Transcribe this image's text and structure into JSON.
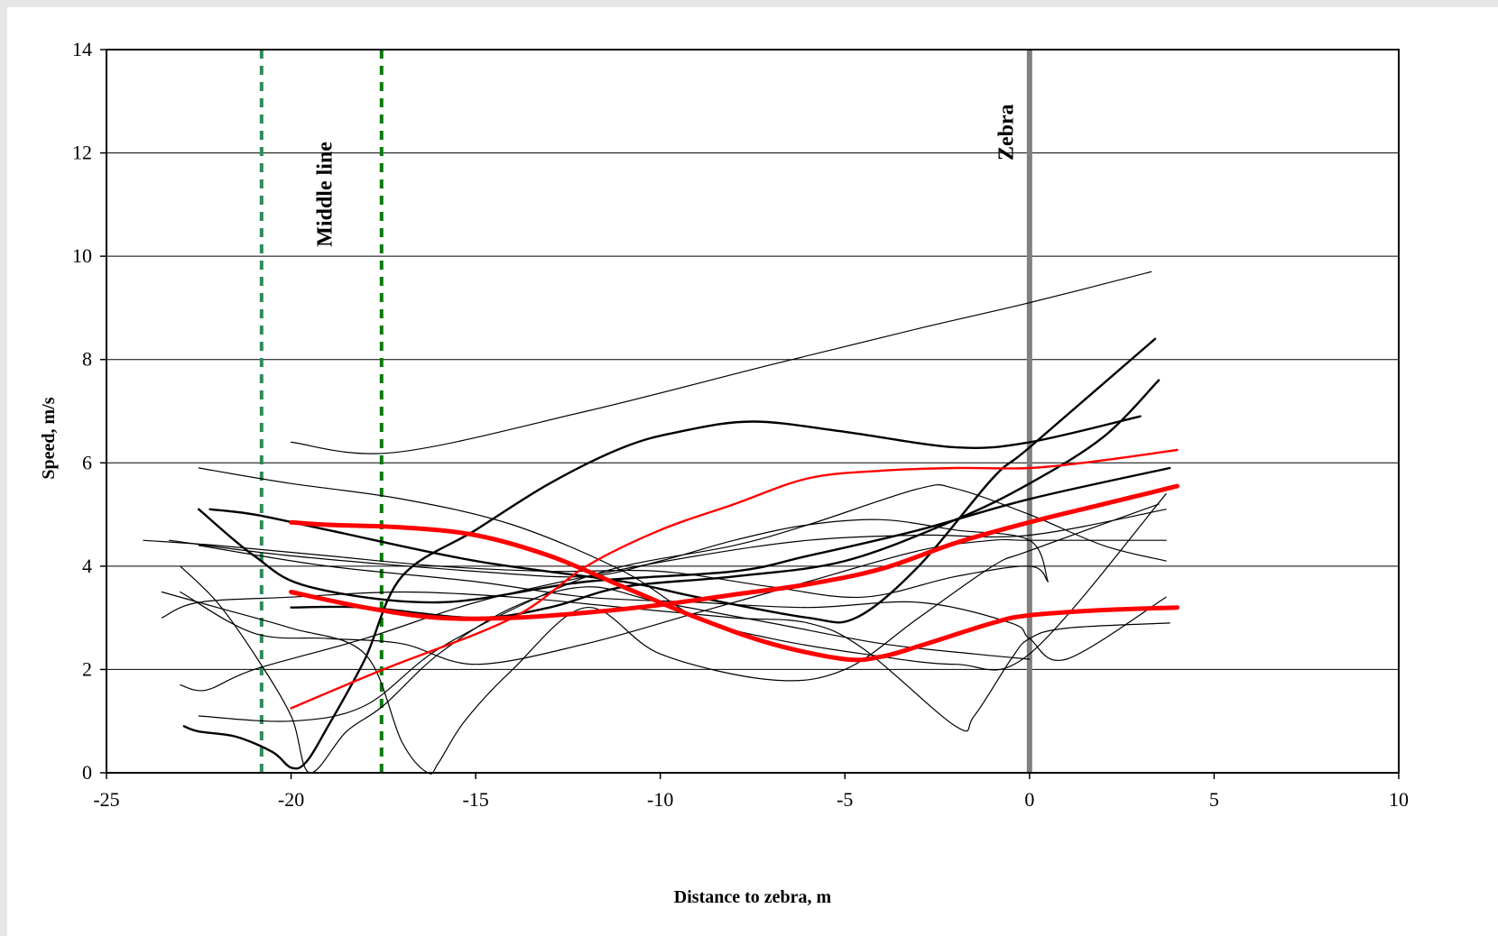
{
  "chart_data": {
    "type": "line",
    "title": "",
    "xlabel": "Distance to zebra, m",
    "ylabel": "Speed, m/s",
    "xlim": [
      -25,
      10
    ],
    "ylim": [
      0,
      14
    ],
    "xticks": [
      -25,
      -20,
      -15,
      -10,
      -5,
      0,
      5,
      10
    ],
    "yticks": [
      0,
      2,
      4,
      6,
      8,
      10,
      12,
      14
    ],
    "grid": "horizontal",
    "legend": "none",
    "vertical_markers": [
      {
        "x": -20.8,
        "style": "dashed",
        "color": "#2e8b57",
        "label": ""
      },
      {
        "x": -17.55,
        "style": "dashed",
        "color": "#0a7a0a",
        "label": ""
      },
      {
        "x": 0,
        "style": "solid",
        "color": "#808080",
        "label": "Zebra"
      }
    ],
    "annotations": [
      {
        "text": "Middle line",
        "x": -18.9,
        "y": 11.2,
        "rotation": -90
      },
      {
        "text": "Zebra",
        "x": -0.45,
        "y": 12.4,
        "rotation": -90
      }
    ],
    "series": [
      {
        "style": "thin",
        "color": "#000000",
        "points": [
          [
            -20,
            6.4
          ],
          [
            -17.2,
            6.2
          ],
          [
            -12,
            7
          ],
          [
            -7,
            7.9
          ],
          [
            -3,
            8.6
          ],
          [
            0,
            9.1
          ],
          [
            3.3,
            9.7
          ]
        ]
      },
      {
        "style": "medium",
        "color": "#000000",
        "points": [
          [
            -22.5,
            5.1
          ],
          [
            -21,
            4.2
          ],
          [
            -19.5,
            3.6
          ],
          [
            -16,
            3.3
          ],
          [
            -12,
            3.7
          ],
          [
            -8,
            3.9
          ],
          [
            -6,
            4.2
          ],
          [
            -3,
            4.7
          ],
          [
            0,
            5.3
          ],
          [
            3.8,
            5.9
          ]
        ]
      },
      {
        "style": "medium",
        "color": "#000000",
        "points": [
          [
            -22.9,
            0.9
          ],
          [
            -22.5,
            0.8
          ],
          [
            -21.5,
            0.7
          ],
          [
            -20.5,
            0.4
          ],
          [
            -20,
            0.1
          ],
          [
            -19.6,
            0.2
          ],
          [
            -19,
            0.9
          ],
          [
            -18,
            2.2
          ],
          [
            -17,
            3.8
          ],
          [
            -15,
            4.7
          ],
          [
            -13,
            5.6
          ],
          [
            -11,
            6.3
          ],
          [
            -9.5,
            6.6
          ],
          [
            -7.5,
            6.8
          ],
          [
            -5,
            6.6
          ],
          [
            -2,
            6.3
          ],
          [
            0,
            6.4
          ],
          [
            3,
            6.9
          ]
        ]
      },
      {
        "style": "medium",
        "color": "#000000",
        "points": [
          [
            -22.2,
            5.1
          ],
          [
            -21,
            5
          ],
          [
            -19,
            4.7
          ],
          [
            -15,
            4.1
          ],
          [
            -11,
            3.7
          ],
          [
            -9,
            3.4
          ],
          [
            -6,
            3
          ],
          [
            -4.7,
            3
          ],
          [
            -3,
            4
          ],
          [
            -1,
            5.7
          ],
          [
            0,
            6.3
          ],
          [
            3.4,
            8.4
          ]
        ]
      },
      {
        "style": "medium",
        "color": "#000000",
        "points": [
          [
            -20,
            3.2
          ],
          [
            -18,
            3.2
          ],
          [
            -15,
            3
          ],
          [
            -13,
            3.2
          ],
          [
            -11,
            3.6
          ],
          [
            -8,
            3.8
          ],
          [
            -5,
            4.1
          ],
          [
            -2,
            4.9
          ],
          [
            0,
            5.6
          ],
          [
            2,
            6.5
          ],
          [
            3.5,
            7.6
          ]
        ]
      },
      {
        "style": "thin",
        "color": "#000000",
        "points": [
          [
            -22.5,
            5.9
          ],
          [
            -20,
            5.6
          ],
          [
            -17,
            5.3
          ],
          [
            -14,
            4.8
          ],
          [
            -11,
            3.9
          ],
          [
            -9,
            3
          ],
          [
            -7,
            2.6
          ],
          [
            -4.5,
            2.3
          ],
          [
            -2,
            2.1
          ],
          [
            0,
            2.3
          ],
          [
            3.7,
            5.4
          ]
        ]
      },
      {
        "style": "thin",
        "color": "#000000",
        "points": [
          [
            -23,
            4
          ],
          [
            -22,
            3.3
          ],
          [
            -21,
            2.3
          ],
          [
            -20,
            1.1
          ],
          [
            -19.5,
            0
          ],
          [
            -18.5,
            0.8
          ],
          [
            -17.5,
            1.3
          ],
          [
            -16,
            2.3
          ],
          [
            -14,
            3.2
          ],
          [
            -12,
            3.6
          ],
          [
            -10,
            3.3
          ],
          [
            -7,
            2.9
          ],
          [
            -4,
            2.5
          ],
          [
            -1.5,
            2.3
          ],
          [
            0,
            2.2
          ]
        ]
      },
      {
        "style": "thin",
        "color": "#000000",
        "points": [
          [
            -23,
            1.7
          ],
          [
            -22.3,
            1.6
          ],
          [
            -21,
            2
          ],
          [
            -18,
            2.6
          ],
          [
            -15,
            3.3
          ],
          [
            -12,
            3.8
          ],
          [
            -9,
            4.2
          ],
          [
            -6,
            4.5
          ],
          [
            -3,
            4.6
          ],
          [
            0,
            4.6
          ],
          [
            3.7,
            5.1
          ]
        ]
      },
      {
        "style": "thin",
        "color": "#000000",
        "points": [
          [
            -23.5,
            3
          ],
          [
            -22.5,
            3.3
          ],
          [
            -20,
            3.4
          ],
          [
            -17,
            3.5
          ],
          [
            -14,
            3.4
          ],
          [
            -11,
            3.2
          ],
          [
            -8,
            3
          ],
          [
            -6,
            2.9
          ],
          [
            -4.5,
            2.4
          ],
          [
            -2,
            0.9
          ],
          [
            -1.5,
            1.1
          ],
          [
            -0.5,
            2.2
          ],
          [
            0,
            2.6
          ],
          [
            1,
            2.8
          ],
          [
            3.8,
            2.9
          ]
        ]
      },
      {
        "style": "thin",
        "color": "#000000",
        "points": [
          [
            -22.5,
            1.1
          ],
          [
            -20,
            1
          ],
          [
            -18,
            1.3
          ],
          [
            -16,
            2.4
          ],
          [
            -13,
            3.5
          ],
          [
            -11,
            4
          ],
          [
            -8,
            4.4
          ],
          [
            -6,
            4.8
          ],
          [
            -3,
            5.5
          ],
          [
            -2,
            5.5
          ],
          [
            0,
            5
          ],
          [
            2,
            4.4
          ],
          [
            3.7,
            4.1
          ]
        ]
      },
      {
        "style": "thin",
        "color": "#000000",
        "points": [
          [
            -23,
            3.5
          ],
          [
            -21,
            2.7
          ],
          [
            -19,
            2.6
          ],
          [
            -17,
            2.5
          ],
          [
            -15,
            2.1
          ],
          [
            -12,
            2.5
          ],
          [
            -9,
            3.1
          ],
          [
            -6,
            3.7
          ],
          [
            -3,
            4.3
          ],
          [
            -1,
            4.5
          ],
          [
            0,
            4.5
          ],
          [
            3.7,
            4.5
          ]
        ]
      },
      {
        "style": "thin",
        "color": "#000000",
        "points": [
          [
            -23.5,
            3.5
          ],
          [
            -22,
            3.2
          ],
          [
            -20,
            2.8
          ],
          [
            -18,
            2.3
          ],
          [
            -17,
            0.6
          ],
          [
            -16.3,
            0
          ],
          [
            -16,
            0.2
          ],
          [
            -15.3,
            1
          ],
          [
            -14,
            2
          ],
          [
            -12,
            3.2
          ],
          [
            -10,
            2.3
          ],
          [
            -7,
            1.8
          ],
          [
            -5,
            2
          ],
          [
            -3,
            3
          ],
          [
            -1,
            4
          ],
          [
            0,
            4.3
          ],
          [
            3.5,
            5.2
          ]
        ]
      },
      {
        "style": "thin",
        "color": "#000000",
        "points": [
          [
            -24,
            4.5
          ],
          [
            -22,
            4.4
          ],
          [
            -19,
            4.2
          ],
          [
            -16,
            4
          ],
          [
            -13,
            3.9
          ],
          [
            -10,
            3.9
          ],
          [
            -7,
            3.6
          ],
          [
            -4.5,
            3.4
          ],
          [
            -2,
            3.8
          ],
          [
            0,
            4
          ],
          [
            0.5,
            3.7
          ]
        ]
      },
      {
        "style": "thin",
        "color": "#000000",
        "points": [
          [
            -22.5,
            4.4
          ],
          [
            -19,
            4
          ],
          [
            -15,
            3.7
          ],
          [
            -12,
            3.4
          ],
          [
            -9,
            3.3
          ],
          [
            -6,
            3.2
          ],
          [
            -3,
            3.3
          ],
          [
            -0.5,
            2.9
          ],
          [
            0,
            2.6
          ],
          [
            1,
            2.2
          ],
          [
            3.7,
            3.4
          ]
        ]
      },
      {
        "style": "thin",
        "color": "#000000",
        "points": [
          [
            -23.3,
            4.5
          ],
          [
            -20,
            4.2
          ],
          [
            -15,
            3.9
          ],
          [
            -12,
            3.8
          ],
          [
            -10,
            4.1
          ],
          [
            -8,
            4.5
          ],
          [
            -6,
            4.8
          ],
          [
            -4,
            4.9
          ],
          [
            -2,
            4.7
          ],
          [
            0,
            4.5
          ],
          [
            0.5,
            3.7
          ]
        ]
      },
      {
        "style": "medium",
        "color": "#ff0000",
        "points": [
          [
            -20,
            1.25
          ],
          [
            -17.5,
            2
          ],
          [
            -14,
            3
          ],
          [
            -12,
            4
          ],
          [
            -10,
            4.7
          ],
          [
            -8,
            5.2
          ],
          [
            -6,
            5.7
          ],
          [
            -4,
            5.85
          ],
          [
            -2,
            5.9
          ],
          [
            0,
            5.9
          ],
          [
            2,
            6.05
          ],
          [
            4,
            6.25
          ]
        ]
      },
      {
        "style": "thick",
        "color": "#ff0000",
        "points": [
          [
            -20,
            4.85
          ],
          [
            -19,
            4.8
          ],
          [
            -17,
            4.75
          ],
          [
            -15,
            4.6
          ],
          [
            -13,
            4.2
          ],
          [
            -11,
            3.6
          ],
          [
            -9,
            3
          ],
          [
            -7,
            2.5
          ],
          [
            -5,
            2.2
          ],
          [
            -4,
            2.25
          ],
          [
            -3,
            2.45
          ],
          [
            -1,
            2.9
          ],
          [
            0,
            3.05
          ],
          [
            2,
            3.15
          ],
          [
            4,
            3.2
          ]
        ]
      },
      {
        "style": "thick",
        "color": "#ff0000",
        "points": [
          [
            -20,
            3.5
          ],
          [
            -18,
            3.2
          ],
          [
            -16,
            3
          ],
          [
            -14,
            3
          ],
          [
            -12,
            3.1
          ],
          [
            -10,
            3.25
          ],
          [
            -8,
            3.45
          ],
          [
            -6,
            3.65
          ],
          [
            -4,
            3.95
          ],
          [
            -2,
            4.45
          ],
          [
            0,
            4.85
          ],
          [
            2,
            5.2
          ],
          [
            4,
            5.55
          ]
        ]
      }
    ]
  }
}
